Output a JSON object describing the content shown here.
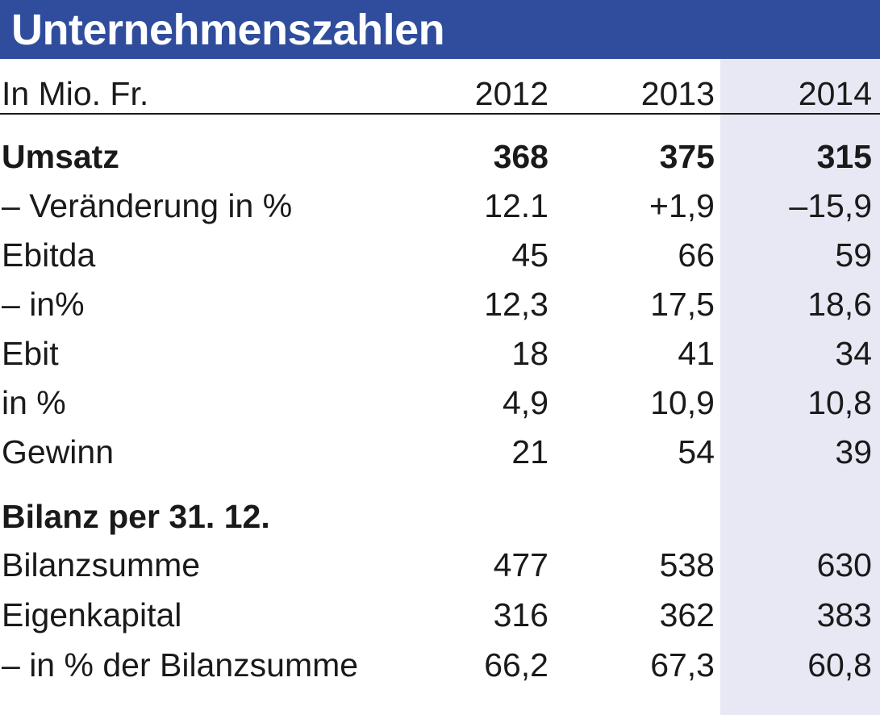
{
  "title": "Unternehmenszahlen",
  "header": {
    "unit_label": "In Mio. Fr.",
    "years": [
      "2012",
      "2013",
      "2014"
    ]
  },
  "rows": [
    {
      "label": "Umsatz",
      "v2012": "368",
      "v2013": "375",
      "v2014": "315"
    },
    {
      "label": "– Veränderung in %",
      "v2012": "12.1",
      "v2013": "+1,9",
      "v2014": "–15,9"
    },
    {
      "label": "Ebitda",
      "v2012": "45",
      "v2013": "66",
      "v2014": "59"
    },
    {
      "label": "– in%",
      "v2012": "12,3",
      "v2013": "17,5",
      "v2014": "18,6"
    },
    {
      "label": "Ebit",
      "v2012": "18",
      "v2013": "41",
      "v2014": "34"
    },
    {
      "label": "in %",
      "v2012": "4,9",
      "v2013": "10,9",
      "v2014": "10,8"
    },
    {
      "label": "Gewinn",
      "v2012": "21",
      "v2013": "54",
      "v2014": "39"
    }
  ],
  "balance_section": {
    "heading": "Bilanz per 31. 12.",
    "rows": [
      {
        "label": "Bilanzsumme",
        "v2012": "477",
        "v2013": "538",
        "v2014": "630"
      },
      {
        "label": "Eigenkapital",
        "v2012": "316",
        "v2013": "362",
        "v2014": "383"
      },
      {
        "label": "– in % der Bilanzsumme",
        "v2012": "66,2",
        "v2013": "67,3",
        "v2014": "60,8"
      }
    ]
  },
  "colors": {
    "title_bar": "#2f4d9c",
    "highlight_column": "#e8e8f5",
    "text": "#1a1a1a"
  }
}
